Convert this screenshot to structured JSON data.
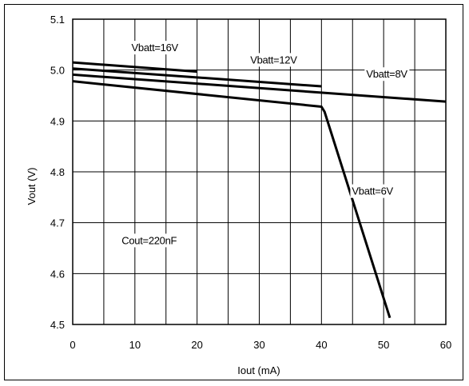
{
  "chart_data": {
    "type": "line",
    "title": "",
    "xlabel": "Iout (mA)",
    "ylabel": "Vout (V)",
    "xlim": [
      0,
      60
    ],
    "ylim": [
      4.5,
      5.1
    ],
    "x_ticks": [
      0,
      10,
      20,
      30,
      40,
      50,
      60
    ],
    "y_ticks": [
      4.5,
      4.6,
      4.7,
      4.8,
      4.9,
      5.0,
      5.1
    ],
    "x_tick_labels": [
      "0",
      "10",
      "20",
      "30",
      "40",
      "50",
      "60"
    ],
    "y_tick_labels": [
      "4.5",
      "4.6",
      "4.7",
      "4.8",
      "4.9",
      "5.0",
      "5.1"
    ],
    "grid": {
      "x_step": 5,
      "y_step": 0.1
    },
    "series": [
      {
        "name": "Vbatt=16V",
        "x": [
          0,
          20
        ],
        "y": [
          5.015,
          4.997
        ]
      },
      {
        "name": "Vbatt=12V",
        "x": [
          0,
          40
        ],
        "y": [
          5.003,
          4.968
        ]
      },
      {
        "name": "Vbatt=8V",
        "x": [
          0,
          60
        ],
        "y": [
          4.991,
          4.938
        ]
      },
      {
        "name": "Vbatt=6V",
        "x": [
          0,
          40,
          40.5,
          51
        ],
        "y": [
          4.978,
          4.928,
          4.918,
          4.513
        ]
      }
    ],
    "annotations": [
      {
        "text": "Vbatt=16V",
        "x": 13.2,
        "y": 5.037
      },
      {
        "text": "Vbatt=12V",
        "x": 32.3,
        "y": 5.013
      },
      {
        "text": "Vbatt=8V",
        "x": 50.5,
        "y": 4.985
      },
      {
        "text": "Vbatt=6V",
        "x": 48.2,
        "y": 4.755
      },
      {
        "text": "Cout=220nF",
        "x": 12.3,
        "y": 4.658
      }
    ]
  }
}
